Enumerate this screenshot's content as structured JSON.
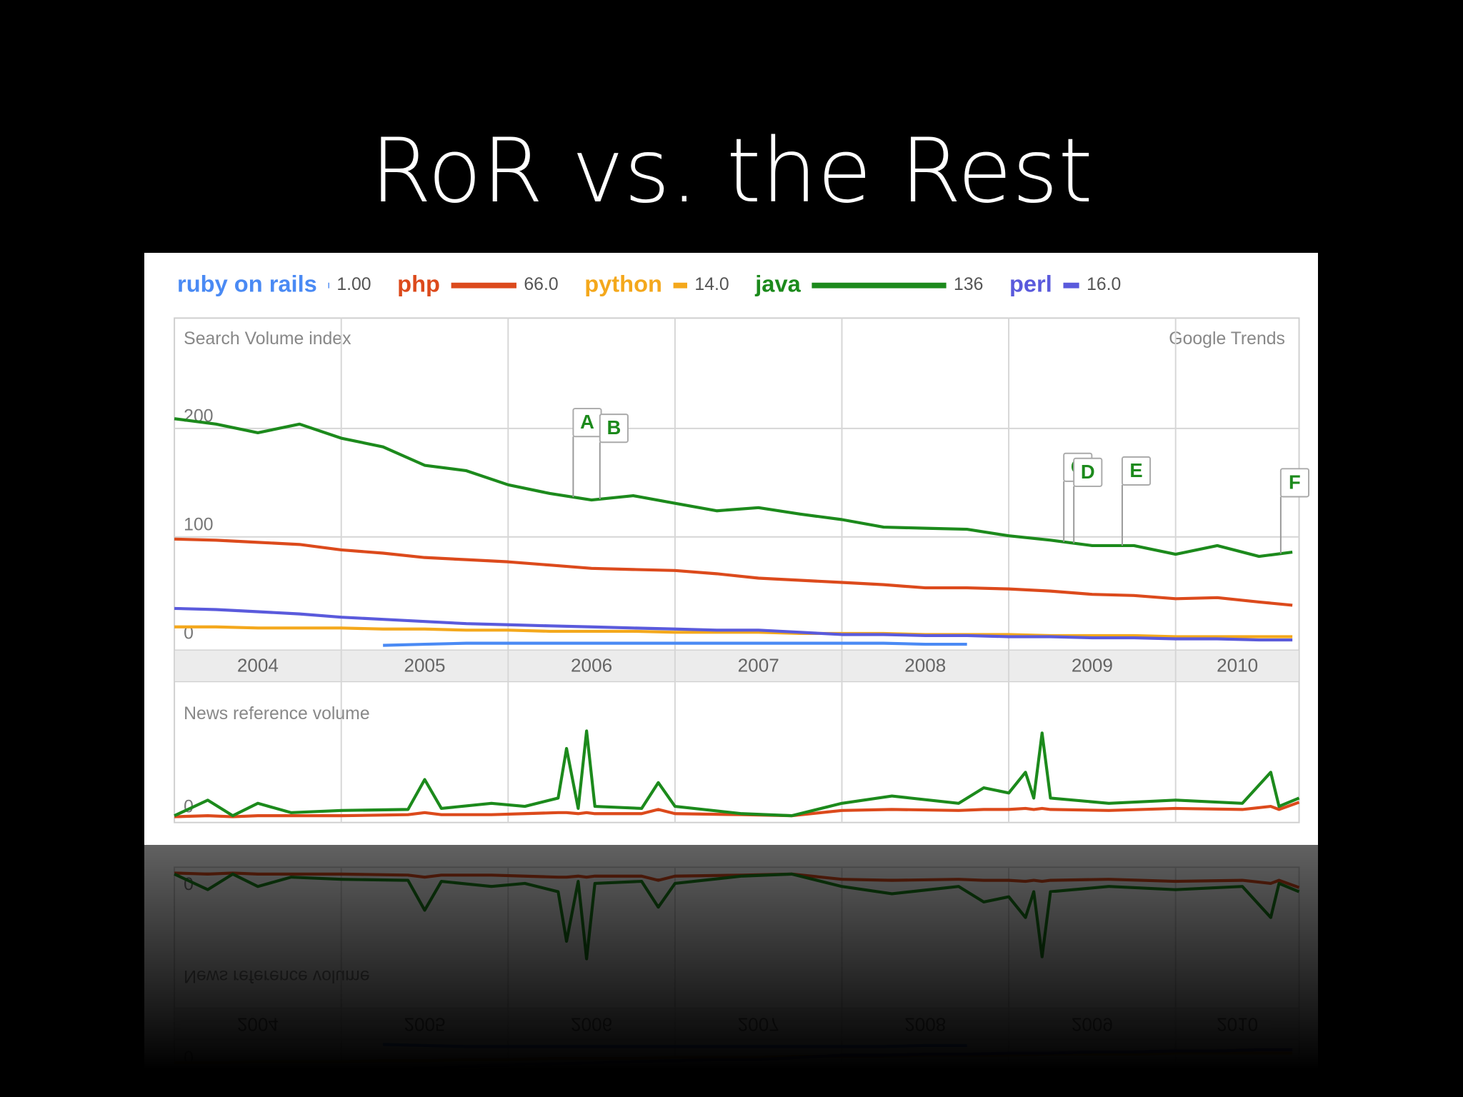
{
  "title": "RoR vs. the Rest",
  "chart_data": [
    {
      "type": "line",
      "subtitle": "Search Volume index",
      "source": "Google Trends",
      "x": [
        2004,
        2004.25,
        2004.5,
        2004.75,
        2005,
        2005.25,
        2005.5,
        2005.75,
        2006,
        2006.25,
        2006.5,
        2006.75,
        2007,
        2007.25,
        2007.5,
        2007.75,
        2008,
        2008.25,
        2008.5,
        2008.75,
        2009,
        2009.25,
        2009.5,
        2009.75,
        2010,
        2010.25,
        2010.5,
        2010.7
      ],
      "xlim": [
        2004,
        2010.74
      ],
      "xticks": [
        2004,
        2005,
        2006,
        2007,
        2008,
        2009,
        2010
      ],
      "ylim": [
        0,
        300
      ],
      "yticks": [
        0,
        100,
        200
      ],
      "grid": true,
      "series": [
        {
          "name": "ruby on rails",
          "color": "#4a8af4",
          "legend_value": {
            "value": 1,
            "label": "1.00"
          },
          "values": [
            null,
            null,
            null,
            null,
            null,
            0,
            1,
            2,
            2,
            2,
            2,
            2,
            2,
            2,
            2,
            2,
            2,
            2,
            1,
            1,
            null,
            null,
            null,
            null,
            null,
            null,
            null,
            null
          ]
        },
        {
          "name": "php",
          "color": "#dc4a1c",
          "legend_value": {
            "value": 66,
            "label": "66.0"
          },
          "values": [
            98,
            97,
            95,
            93,
            88,
            85,
            81,
            79,
            77,
            74,
            71,
            70,
            69,
            66,
            62,
            60,
            58,
            56,
            53,
            53,
            52,
            50,
            47,
            46,
            43,
            44,
            40,
            37
          ]
        },
        {
          "name": "python",
          "color": "#f4a81c",
          "legend_value": {
            "value": 14,
            "label": "14.0"
          },
          "values": [
            17,
            17,
            16,
            16,
            16,
            15,
            15,
            14,
            14,
            13,
            13,
            13,
            12,
            12,
            12,
            11,
            11,
            11,
            10,
            10,
            10,
            9,
            9,
            9,
            8,
            8,
            8,
            8
          ]
        },
        {
          "name": "java",
          "color": "#1c8a1c",
          "legend_value": 136,
          "values": [
            209,
            204,
            196,
            204,
            191,
            183,
            166,
            161,
            148,
            140,
            134,
            138,
            131,
            124,
            127,
            121,
            116,
            109,
            108,
            107,
            101,
            97,
            92,
            92,
            84,
            92,
            82,
            86
          ]
        },
        {
          "name": "perl",
          "color": "#5a5adc",
          "legend_value": {
            "value": 16,
            "label": "16.0"
          },
          "values": [
            34,
            33,
            31,
            29,
            26,
            24,
            22,
            20,
            19,
            18,
            17,
            16,
            15,
            14,
            14,
            12,
            10,
            10,
            9,
            9,
            8,
            8,
            7,
            7,
            6,
            6,
            5,
            5
          ]
        }
      ],
      "annotations": [
        {
          "label": "A",
          "x": 2006.39
        },
        {
          "label": "B",
          "x": 2006.55
        },
        {
          "label": "C",
          "x": 2009.33
        },
        {
          "label": "D",
          "x": 2009.39
        },
        {
          "label": "E",
          "x": 2009.68
        },
        {
          "label": "F",
          "x": 2010.63
        }
      ]
    },
    {
      "type": "line",
      "subtitle": "News reference volume",
      "x": [
        2004,
        2004.2,
        2004.35,
        2004.5,
        2004.7,
        2005,
        2005.4,
        2005.5,
        2005.6,
        2005.9,
        2006.1,
        2006.3,
        2006.35,
        2006.42,
        2006.47,
        2006.52,
        2006.8,
        2006.9,
        2007,
        2007.4,
        2007.7,
        2008,
        2008.3,
        2008.7,
        2008.85,
        2009,
        2009.1,
        2009.15,
        2009.2,
        2009.25,
        2009.6,
        2010,
        2010.4,
        2010.57,
        2010.62,
        2010.74
      ],
      "xlim": [
        2004,
        2010.74
      ],
      "ylim": [
        0,
        12
      ],
      "yticks": [
        0
      ],
      "series": [
        {
          "name": "php",
          "color": "#dc4a1c",
          "values": [
            0.2,
            0.3,
            0.2,
            0.3,
            0.3,
            0.3,
            0.4,
            0.6,
            0.4,
            0.4,
            0.5,
            0.6,
            0.6,
            0.5,
            0.6,
            0.5,
            0.5,
            0.9,
            0.5,
            0.4,
            0.3,
            0.8,
            0.9,
            0.8,
            0.9,
            0.9,
            1.0,
            0.9,
            1.0,
            0.9,
            0.8,
            1.0,
            0.9,
            1.2,
            0.9,
            1.6
          ]
        },
        {
          "name": "java",
          "color": "#1c8a1c",
          "values": [
            0.3,
            1.8,
            0.3,
            1.5,
            0.6,
            0.8,
            0.9,
            3.8,
            1.0,
            1.5,
            1.2,
            2.0,
            6.8,
            1.0,
            8.5,
            1.2,
            1.0,
            3.5,
            1.2,
            0.5,
            0.3,
            1.5,
            2.2,
            1.5,
            3.0,
            2.5,
            4.5,
            2.0,
            8.3,
            2.0,
            1.5,
            1.8,
            1.5,
            4.5,
            1.2,
            2.0
          ]
        }
      ]
    }
  ]
}
